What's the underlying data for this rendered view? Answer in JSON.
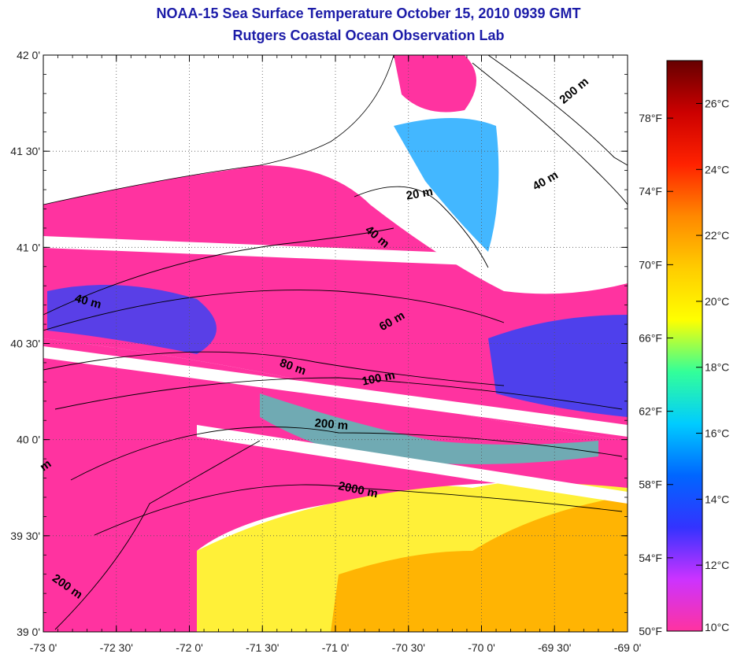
{
  "title": "NOAA-15 Sea Surface Temperature October 15, 2010 0939 GMT",
  "subtitle": "Rutgers Coastal Ocean Observation Lab",
  "map": {
    "lon_range": [
      -73.0,
      -69.0
    ],
    "lat_range": [
      39.0,
      42.0
    ],
    "lon_ticks": [
      {
        "value": -73.0,
        "label": "-73 0'"
      },
      {
        "value": -72.5,
        "label": "-72 30'"
      },
      {
        "value": -72.0,
        "label": "-72 0'"
      },
      {
        "value": -71.5,
        "label": "-71 30'"
      },
      {
        "value": -71.0,
        "label": "-71 0'"
      },
      {
        "value": -70.5,
        "label": "-70 30'"
      },
      {
        "value": -70.0,
        "label": "-70 0'"
      },
      {
        "value": -69.5,
        "label": "-69 30'"
      },
      {
        "value": -69.0,
        "label": "-69 0'"
      }
    ],
    "lat_ticks": [
      {
        "value": 42.0,
        "label": "42 0'"
      },
      {
        "value": 41.5,
        "label": "41 30'"
      },
      {
        "value": 41.0,
        "label": "41 0'"
      },
      {
        "value": 40.5,
        "label": "40 30'"
      },
      {
        "value": 40.0,
        "label": "40 0'"
      },
      {
        "value": 39.5,
        "label": "39 30'"
      },
      {
        "value": 39.0,
        "label": "39 0'"
      }
    ],
    "grid": true,
    "depth_labels": [
      {
        "text": "200 m",
        "lon": -69.35,
        "lat": 41.8,
        "rot": 40
      },
      {
        "text": "40 m",
        "lon": -69.55,
        "lat": 41.33,
        "rot": 30
      },
      {
        "text": "20 m",
        "lon": -70.42,
        "lat": 41.26,
        "rot": 10
      },
      {
        "text": "40 m",
        "lon": -70.73,
        "lat": 41.04,
        "rot": -40
      },
      {
        "text": "40 m",
        "lon": -72.7,
        "lat": 40.7,
        "rot": -15
      },
      {
        "text": "60 m",
        "lon": -70.6,
        "lat": 40.6,
        "rot": 30
      },
      {
        "text": "80 m",
        "lon": -71.3,
        "lat": 40.36,
        "rot": -20
      },
      {
        "text": "100 m",
        "lon": -70.7,
        "lat": 40.3,
        "rot": 12
      },
      {
        "text": "200 m",
        "lon": -71.03,
        "lat": 40.06,
        "rot": -5
      },
      {
        "text": "2000 m",
        "lon": -70.85,
        "lat": 39.72,
        "rot": -12
      },
      {
        "text": "200 m",
        "lon": -72.85,
        "lat": 39.22,
        "rot": -35
      },
      {
        "text": "m",
        "lon": -72.97,
        "lat": 39.85,
        "rot": 35
      }
    ]
  },
  "colorbar": {
    "celsius_range": [
      10,
      27.3
    ],
    "celsius_ticks": [
      {
        "value": 10,
        "label": "10°C"
      },
      {
        "value": 12,
        "label": "12°C"
      },
      {
        "value": 14,
        "label": "14°C"
      },
      {
        "value": 16,
        "label": "16°C"
      },
      {
        "value": 18,
        "label": "18°C"
      },
      {
        "value": 20,
        "label": "20°C"
      },
      {
        "value": 22,
        "label": "22°C"
      },
      {
        "value": 24,
        "label": "24°C"
      },
      {
        "value": 26,
        "label": "26°C"
      }
    ],
    "fahrenheit_ticks": [
      {
        "value": 50,
        "label": "50°F"
      },
      {
        "value": 54,
        "label": "54°F"
      },
      {
        "value": 58,
        "label": "58°F"
      },
      {
        "value": 62,
        "label": "62°F"
      },
      {
        "value": 66,
        "label": "66°F"
      },
      {
        "value": 70,
        "label": "70°F"
      },
      {
        "value": 74,
        "label": "74°F"
      },
      {
        "value": 78,
        "label": "78°F"
      }
    ],
    "colors": [
      "#ff33a0",
      "#cc33ff",
      "#3333ff",
      "#0066ff",
      "#00ccff",
      "#33ff99",
      "#ffff00",
      "#ffcc00",
      "#ff8800",
      "#ff2200",
      "#cc0000",
      "#660000"
    ]
  },
  "colors": {
    "title": "#1c1ca8",
    "water_cold": "#ff33a0",
    "frame": "#000000"
  }
}
